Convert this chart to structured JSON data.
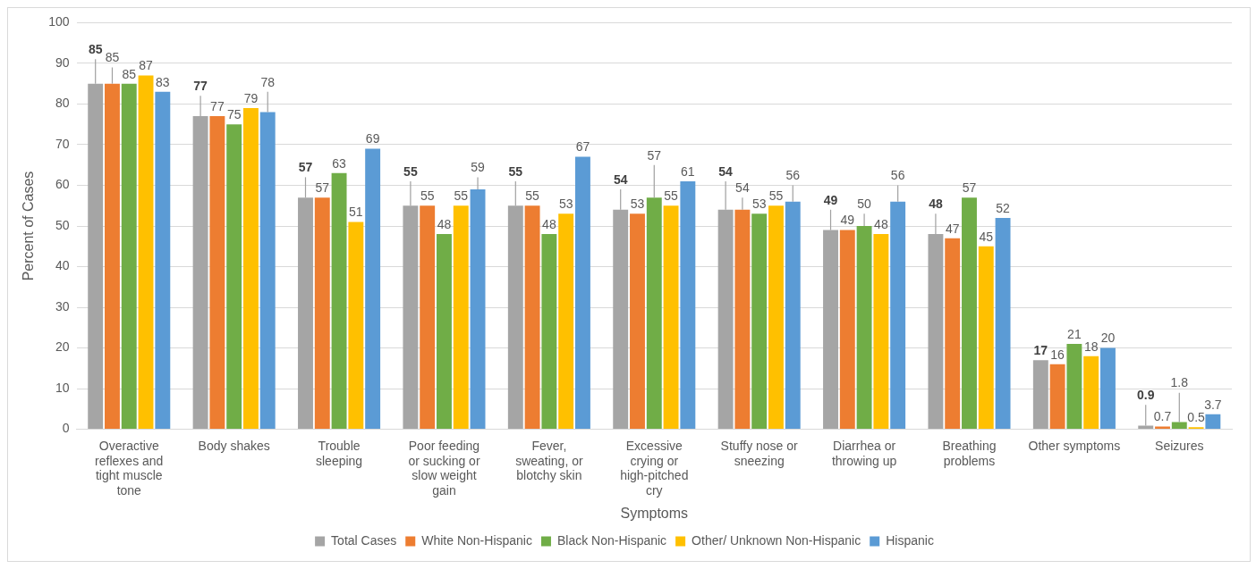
{
  "chart_data": {
    "type": "bar",
    "xlabel": "Symptoms",
    "ylabel": "Percent of Cases",
    "categories": [
      "Overactive reflexes and tight muscle tone",
      "Body shakes",
      "Trouble sleeping",
      "Poor feeding or sucking or slow weight gain",
      "Fever, sweating, or blotchy skin",
      "Excessive crying or high-pitched cry",
      "Stuffy nose or sneezing",
      "Diarrhea or throwing up",
      "Breathing problems",
      "Other symptoms",
      "Seizures"
    ],
    "series": [
      {
        "name": "Total Cases",
        "color": "#a5a5a5",
        "values": [
          85,
          77,
          57,
          55,
          55,
          54,
          54,
          49,
          48,
          17,
          0.9
        ],
        "errors": [
          [
            85,
            91
          ],
          [
            77,
            82
          ],
          [
            57,
            62
          ],
          [
            55,
            61
          ],
          [
            55,
            61
          ],
          [
            54,
            59
          ],
          [
            54,
            61
          ],
          [
            49,
            54
          ],
          [
            48,
            53
          ],
          null,
          [
            0.9,
            6
          ]
        ]
      },
      {
        "name": "White Non-Hispanic",
        "color": "#ed7d31",
        "values": [
          85,
          77,
          57,
          55,
          55,
          53,
          54,
          49,
          47,
          16,
          0.7
        ],
        "errors": [
          [
            85,
            89
          ],
          null,
          null,
          null,
          null,
          null,
          [
            54,
            57
          ],
          null,
          null,
          null,
          null
        ]
      },
      {
        "name": "Black Non-Hispanic",
        "color": "#70ad47",
        "values": [
          85,
          75,
          63,
          48,
          48,
          57,
          53,
          50,
          57,
          21,
          1.8
        ],
        "errors": [
          null,
          null,
          null,
          null,
          null,
          [
            57,
            65
          ],
          null,
          [
            50,
            53
          ],
          null,
          null,
          [
            1.8,
            9
          ]
        ]
      },
      {
        "name": "Other/ Unknown Non-Hispanic",
        "color": "#ffc000",
        "values": [
          87,
          79,
          51,
          55,
          53,
          55,
          55,
          48,
          45,
          18,
          0.5
        ]
      },
      {
        "name": "Hispanic",
        "color": "#5b9bd5",
        "values": [
          83,
          78,
          69,
          59,
          67,
          61,
          56,
          56,
          52,
          20,
          3.7
        ],
        "errors": [
          null,
          [
            78,
            83
          ],
          null,
          [
            59,
            62
          ],
          null,
          null,
          [
            56,
            60
          ],
          [
            56,
            60
          ],
          null,
          null,
          null
        ]
      }
    ],
    "ylim": [
      0,
      100
    ],
    "yticks": [
      0,
      10,
      20,
      30,
      40,
      50,
      60,
      70,
      80,
      90,
      100
    ],
    "grid": "y",
    "legend": "bottom",
    "data_labels": true
  }
}
